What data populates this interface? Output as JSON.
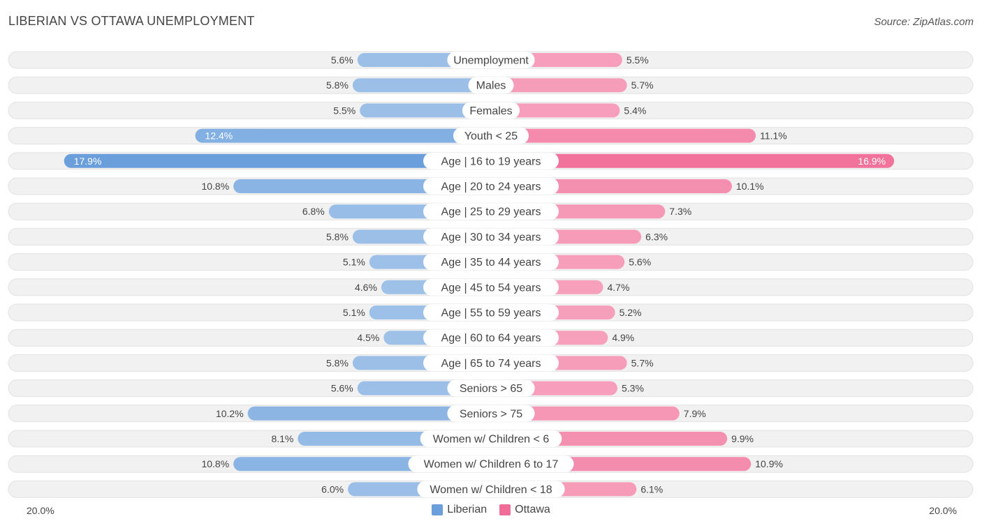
{
  "title": "LIBERIAN VS OTTAWA UNEMPLOYMENT",
  "source": "Source: ZipAtlas.com",
  "colors": {
    "liberian_light": "#a6c6ea",
    "liberian_dark": "#6a9fdc",
    "ottawa_light": "#f7a8c2",
    "ottawa_dark": "#f06d97",
    "row_bg": "#f1f1f1",
    "row_border": "#e2e2e2"
  },
  "chart_data": {
    "type": "bar",
    "orientation": "horizontal-diverging",
    "title": "LIBERIAN VS OTTAWA UNEMPLOYMENT",
    "axis_max": 20.0,
    "axis_left_label": "20.0%",
    "axis_right_label": "20.0%",
    "series": [
      {
        "name": "Liberian",
        "values": [
          5.6,
          5.8,
          5.5,
          12.4,
          17.9,
          10.8,
          6.8,
          5.8,
          5.1,
          4.6,
          5.1,
          4.5,
          5.8,
          5.6,
          10.2,
          8.1,
          10.8,
          6.0
        ]
      },
      {
        "name": "Ottawa",
        "values": [
          5.5,
          5.7,
          5.4,
          11.1,
          16.9,
          10.1,
          7.3,
          6.3,
          5.6,
          4.7,
          5.2,
          4.9,
          5.7,
          5.3,
          7.9,
          9.9,
          10.9,
          6.1
        ]
      }
    ],
    "categories": [
      "Unemployment",
      "Males",
      "Females",
      "Youth < 25",
      "Age | 16 to 19 years",
      "Age | 20 to 24 years",
      "Age | 25 to 29 years",
      "Age | 30 to 34 years",
      "Age | 35 to 44 years",
      "Age | 45 to 54 years",
      "Age | 55 to 59 years",
      "Age | 60 to 64 years",
      "Age | 65 to 74 years",
      "Seniors > 65",
      "Seniors > 75",
      "Women w/ Children < 6",
      "Women w/ Children 6 to 17",
      "Women w/ Children < 18"
    ],
    "left_labels": [
      "5.6%",
      "5.8%",
      "5.5%",
      "12.4%",
      "17.9%",
      "10.8%",
      "6.8%",
      "5.8%",
      "5.1%",
      "4.6%",
      "5.1%",
      "4.5%",
      "5.8%",
      "5.6%",
      "10.2%",
      "8.1%",
      "10.8%",
      "6.0%"
    ],
    "right_labels": [
      "5.5%",
      "5.7%",
      "5.4%",
      "11.1%",
      "16.9%",
      "10.1%",
      "7.3%",
      "6.3%",
      "5.6%",
      "4.7%",
      "5.2%",
      "4.9%",
      "5.7%",
      "5.3%",
      "7.9%",
      "9.9%",
      "10.9%",
      "6.1%"
    ]
  },
  "legend": {
    "liberian": "Liberian",
    "ottawa": "Ottawa"
  }
}
